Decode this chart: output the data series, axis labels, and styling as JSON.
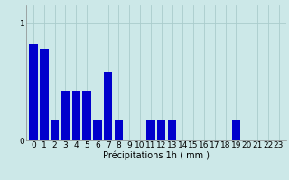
{
  "categories": [
    0,
    1,
    2,
    3,
    4,
    5,
    6,
    7,
    8,
    9,
    10,
    11,
    12,
    13,
    14,
    15,
    16,
    17,
    18,
    19,
    20,
    21,
    22,
    23
  ],
  "values": [
    0.82,
    0.78,
    0.18,
    0.42,
    0.42,
    0.42,
    0.18,
    0.58,
    0.18,
    0.0,
    0.0,
    0.18,
    0.18,
    0.18,
    0.0,
    0.0,
    0.0,
    0.0,
    0.0,
    0.18,
    0.0,
    0.0,
    0.0,
    0.0
  ],
  "bar_color": "#0000cc",
  "background_color": "#cce8e8",
  "grid_color": "#aacccc",
  "xlabel": "Précipitations 1h ( mm )",
  "ylim": [
    0,
    1.15
  ],
  "yticks": [
    0,
    1
  ],
  "xlabel_fontsize": 7,
  "tick_fontsize": 6.5
}
